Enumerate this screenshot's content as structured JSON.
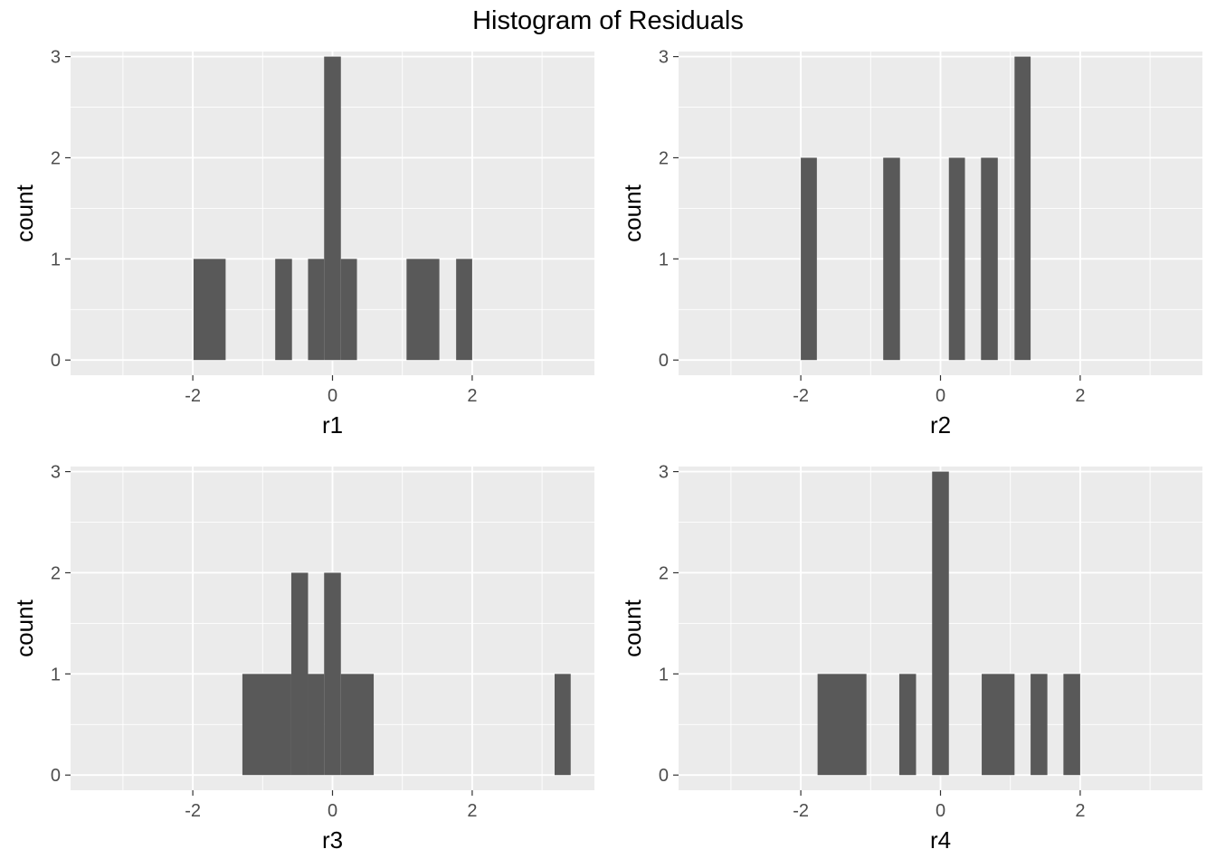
{
  "title": "Histogram of Residuals",
  "colors": {
    "panel_background": "#ebebeb",
    "grid_major": "#ffffff",
    "bar_fill": "#595959",
    "tick": "#333333",
    "tick_label": "#4d4d4d"
  },
  "chart_data": [
    {
      "type": "bar",
      "subtype": "histogram",
      "xlabel": "r1",
      "ylabel": "count",
      "xlim": [
        -3.75,
        3.75
      ],
      "ylim": [
        -0.15,
        3.05
      ],
      "x_ticks": [
        -2,
        0,
        2
      ],
      "y_ticks": [
        0,
        1,
        2,
        3
      ],
      "grid": true,
      "bin_width": 0.236,
      "bins": [
        {
          "x_start": -1.99,
          "x_end": -1.53,
          "count": 1
        },
        {
          "x_start": -0.82,
          "x_end": -0.58,
          "count": 1
        },
        {
          "x_start": -0.35,
          "x_end": -0.12,
          "count": 1
        },
        {
          "x_start": -0.12,
          "x_end": 0.12,
          "count": 3
        },
        {
          "x_start": 0.12,
          "x_end": 0.35,
          "count": 1
        },
        {
          "x_start": 1.06,
          "x_end": 1.53,
          "count": 1
        },
        {
          "x_start": 1.77,
          "x_end": 2.0,
          "count": 1
        }
      ]
    },
    {
      "type": "bar",
      "subtype": "histogram",
      "xlabel": "r2",
      "ylabel": "count",
      "xlim": [
        -3.75,
        3.75
      ],
      "ylim": [
        -0.15,
        3.05
      ],
      "x_ticks": [
        -2,
        0,
        2
      ],
      "y_ticks": [
        0,
        1,
        2,
        3
      ],
      "grid": true,
      "bin_width": 0.236,
      "bins": [
        {
          "x_start": -2.0,
          "x_end": -1.77,
          "count": 2
        },
        {
          "x_start": -0.82,
          "x_end": -0.58,
          "count": 2
        },
        {
          "x_start": 0.12,
          "x_end": 0.35,
          "count": 2
        },
        {
          "x_start": 0.58,
          "x_end": 0.82,
          "count": 2
        },
        {
          "x_start": 1.06,
          "x_end": 1.29,
          "count": 3
        }
      ]
    },
    {
      "type": "bar",
      "subtype": "histogram",
      "xlabel": "r3",
      "ylabel": "count",
      "xlim": [
        -3.75,
        3.75
      ],
      "ylim": [
        -0.15,
        3.05
      ],
      "x_ticks": [
        -2,
        0,
        2
      ],
      "y_ticks": [
        0,
        1,
        2,
        3
      ],
      "grid": true,
      "bin_width": 0.236,
      "bins": [
        {
          "x_start": -1.29,
          "x_end": -0.59,
          "count": 1
        },
        {
          "x_start": -0.59,
          "x_end": -0.35,
          "count": 2
        },
        {
          "x_start": -0.35,
          "x_end": -0.12,
          "count": 1
        },
        {
          "x_start": -0.12,
          "x_end": 0.12,
          "count": 2
        },
        {
          "x_start": 0.12,
          "x_end": 0.59,
          "count": 1
        },
        {
          "x_start": 3.18,
          "x_end": 3.41,
          "count": 1
        }
      ]
    },
    {
      "type": "bar",
      "subtype": "histogram",
      "xlabel": "r4",
      "ylabel": "count",
      "xlim": [
        -3.75,
        3.75
      ],
      "ylim": [
        -0.15,
        3.05
      ],
      "x_ticks": [
        -2,
        0,
        2
      ],
      "y_ticks": [
        0,
        1,
        2,
        3
      ],
      "grid": true,
      "bin_width": 0.236,
      "bins": [
        {
          "x_start": -1.76,
          "x_end": -1.06,
          "count": 1
        },
        {
          "x_start": -0.59,
          "x_end": -0.35,
          "count": 1
        },
        {
          "x_start": -0.12,
          "x_end": 0.12,
          "count": 3
        },
        {
          "x_start": 0.59,
          "x_end": 1.06,
          "count": 1
        },
        {
          "x_start": 1.29,
          "x_end": 1.53,
          "count": 1
        },
        {
          "x_start": 1.76,
          "x_end": 2.0,
          "count": 1
        }
      ]
    }
  ]
}
